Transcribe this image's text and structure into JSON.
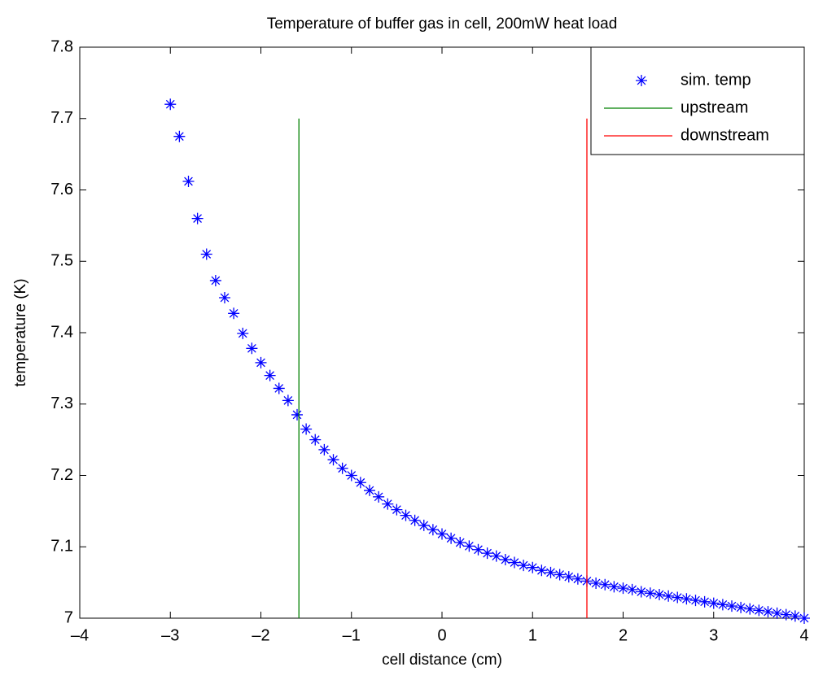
{
  "chart_data": {
    "type": "scatter",
    "title": "Temperature of buffer gas in cell, 200mW heat load",
    "x_label": "cell distance (cm)",
    "y_label": "temperature (K)",
    "xlim": [
      -4,
      4
    ],
    "ylim": [
      7,
      7.8
    ],
    "xticks": [
      {
        "value": -4,
        "label": "–4"
      },
      {
        "value": -3,
        "label": "–3"
      },
      {
        "value": -2,
        "label": "–2"
      },
      {
        "value": -1,
        "label": "–1"
      },
      0,
      1,
      2,
      3,
      4
    ],
    "yticks": [
      7,
      7.1,
      7.2,
      7.3,
      7.4,
      7.5,
      7.6,
      7.7,
      7.8
    ],
    "legend": "northeast",
    "series": [
      {
        "name": "sim. temp",
        "type": "scatter",
        "marker": "asterisk",
        "color": "#0000ff",
        "x": [
          -3.0,
          -2.9,
          -2.8,
          -2.7,
          -2.6,
          -2.5,
          -2.4,
          -2.3,
          -2.2,
          -2.1,
          -2.0,
          -1.9,
          -1.8,
          -1.7,
          -1.6,
          -1.5,
          -1.4,
          -1.3,
          -1.2,
          -1.1,
          -1.0,
          -0.9,
          -0.8,
          -0.7,
          -0.6,
          -0.5,
          -0.4,
          -0.3,
          -0.2,
          -0.1,
          0,
          0.1,
          0.2,
          0.3,
          0.4,
          0.5,
          0.6,
          0.7,
          0.8,
          0.9,
          1.0,
          1.1,
          1.2,
          1.3,
          1.4,
          1.5,
          1.6,
          1.7,
          1.8,
          1.9,
          2.0,
          2.1,
          2.2,
          2.3,
          2.4,
          2.5,
          2.6,
          2.7,
          2.8,
          2.9,
          3.0,
          3.1,
          3.2,
          3.3,
          3.4,
          3.5,
          3.6,
          3.7,
          3.8,
          3.9,
          4.0
        ],
        "values": [
          7.72,
          7.675,
          7.612,
          7.56,
          7.51,
          7.473,
          7.449,
          7.427,
          7.399,
          7.378,
          7.358,
          7.34,
          7.322,
          7.305,
          7.285,
          7.265,
          7.25,
          7.236,
          7.222,
          7.21,
          7.2,
          7.19,
          7.179,
          7.17,
          7.16,
          7.152,
          7.144,
          7.137,
          7.13,
          7.124,
          7.118,
          7.112,
          7.106,
          7.101,
          7.096,
          7.091,
          7.087,
          7.082,
          7.078,
          7.074,
          7.071,
          7.067,
          7.064,
          7.061,
          7.058,
          7.055,
          7.052,
          7.049,
          7.047,
          7.044,
          7.042,
          7.04,
          7.037,
          7.035,
          7.033,
          7.031,
          7.029,
          7.027,
          7.025,
          7.023,
          7.021,
          7.019,
          7.017,
          7.015,
          7.013,
          7.011,
          7.009,
          7.007,
          7.005,
          7.003,
          7.0
        ]
      },
      {
        "name": "upstream",
        "type": "line",
        "color": "#008000",
        "x": [
          -1.58,
          -1.58
        ],
        "values": [
          7,
          7.7
        ]
      },
      {
        "name": "downstream",
        "type": "line",
        "color": "#ff0000",
        "x": [
          1.6,
          1.6
        ],
        "values": [
          7,
          7.7
        ]
      }
    ]
  }
}
